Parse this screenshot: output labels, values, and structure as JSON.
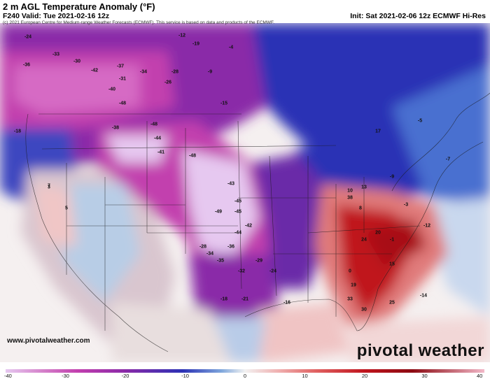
{
  "header": {
    "title": "2 m AGL Temperature Anomaly (°F)",
    "valid": "F240 Valid: Tue 2021-02-16 12z",
    "init": "Init: Sat 2021-02-06 12z ECMWF Hi-Res",
    "copyright": "(c) 2021 European Centre for Medium-range Weather Forecasts (ECMWF). This service is based on data and products of the ECMWF."
  },
  "map": {
    "region": "North America (CONUS)",
    "colors": {
      "deep_cold": "#e6c8f0",
      "very_cold": "#c23fae",
      "cold": "#7a2096",
      "cool": "#2b31b5",
      "mild_cool": "#a7c6e8",
      "near_zero": "#f2f2f2",
      "warm": "#f1b5b5",
      "hot": "#c0141d"
    },
    "anomaly_labels": [
      "-24",
      "-33",
      "-30",
      "-36",
      "-42",
      "-37",
      "-40",
      "-31",
      "-34",
      "-28",
      "-26",
      "-19",
      "-12",
      "-9",
      "-15",
      "-4",
      "-18",
      "-48",
      "-48",
      "-38",
      "-44",
      "-41",
      "-48",
      "-43",
      "-45",
      "-49",
      "-45",
      "-42",
      "-44",
      "-36",
      "-35",
      "-32",
      "-34",
      "-28",
      "-29",
      "-24",
      "-21",
      "-18",
      "-16",
      "-14",
      "-12",
      "-9",
      "-7",
      "-5",
      "-3",
      "-1",
      "0",
      "3",
      "5",
      "7",
      "10",
      "13",
      "8",
      "15",
      "17",
      "19",
      "20",
      "24",
      "25",
      "30",
      "33",
      "38"
    ]
  },
  "footer": {
    "website": "www.pivotalweather.com",
    "brand": "pivotal weather"
  },
  "colorbar": {
    "ticks": [
      "-40",
      "-30",
      "-20",
      "-10",
      "0",
      "10",
      "20",
      "30",
      "40"
    ]
  }
}
